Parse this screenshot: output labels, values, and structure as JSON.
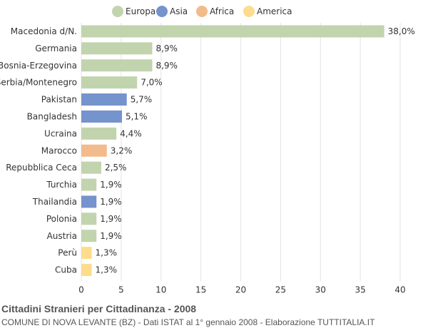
{
  "chart_data": {
    "type": "bar",
    "orientation": "horizontal",
    "legend": {
      "placement": "top-center",
      "entries": [
        {
          "name": "Europa",
          "color": "#c2d4ae"
        },
        {
          "name": "Asia",
          "color": "#7593cc"
        },
        {
          "name": "Africa",
          "color": "#f2bb8b"
        },
        {
          "name": "America",
          "color": "#fedc8d"
        }
      ]
    },
    "categories": [
      "Macedonia d/N.",
      "Germania",
      "Bosnia-Erzegovina",
      "Serbia/Montenegro",
      "Pakistan",
      "Bangladesh",
      "Ucraina",
      "Marocco",
      "Repubblica Ceca",
      "Turchia",
      "Thailandia",
      "Polonia",
      "Austria",
      "Perù",
      "Cuba"
    ],
    "values": [
      38.0,
      8.9,
      8.9,
      7.0,
      5.7,
      5.1,
      4.4,
      3.2,
      2.5,
      1.9,
      1.9,
      1.9,
      1.9,
      1.3,
      1.3
    ],
    "value_labels": [
      "38,0%",
      "8,9%",
      "8,9%",
      "7,0%",
      "5,7%",
      "5,1%",
      "4,4%",
      "3,2%",
      "2,5%",
      "1,9%",
      "1,9%",
      "1,9%",
      "1,9%",
      "1,3%",
      "1,3%"
    ],
    "continents": [
      "Europa",
      "Europa",
      "Europa",
      "Europa",
      "Asia",
      "Asia",
      "Europa",
      "Africa",
      "Europa",
      "Europa",
      "Asia",
      "Europa",
      "Europa",
      "America",
      "America"
    ],
    "xlim": [
      0,
      40
    ],
    "xticks": [
      0,
      5,
      10,
      15,
      20,
      25,
      30,
      35,
      40
    ],
    "grid": true
  },
  "footer": {
    "title": "Cittadini Stranieri per Cittadinanza - 2008",
    "subtitle": "COMUNE DI NOVA LEVANTE (BZ) - Dati ISTAT al 1° gennaio 2008 - Elaborazione TUTTITALIA.IT"
  }
}
